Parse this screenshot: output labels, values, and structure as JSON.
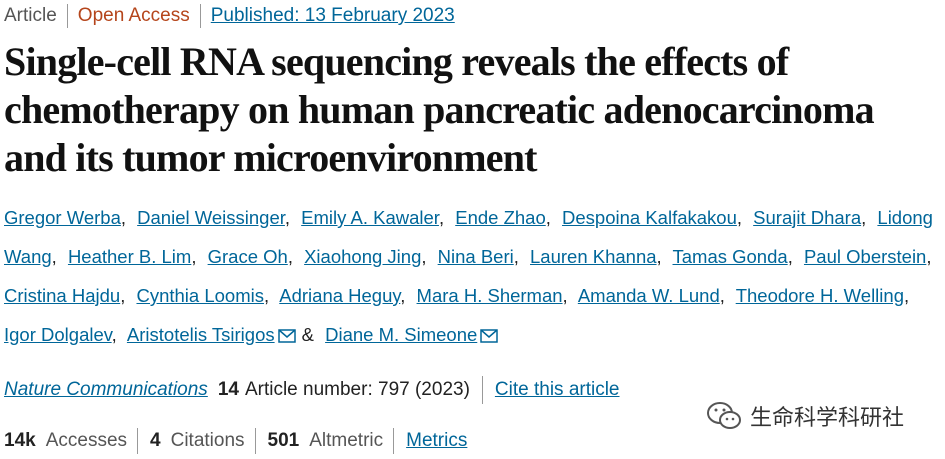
{
  "meta": {
    "type": "Article",
    "access": "Open Access",
    "published": "Published: 13 February 2023"
  },
  "title": "Single-cell RNA sequencing reveals the effects of chemotherapy on human pancreatic adenocarcinoma and its tumor microenvironment",
  "authors": {
    "separator": ",",
    "last_joiner": "&",
    "list": [
      {
        "name": "Gregor Werba",
        "email": false
      },
      {
        "name": "Daniel Weissinger",
        "email": false
      },
      {
        "name": "Emily A. Kawaler",
        "email": false
      },
      {
        "name": "Ende Zhao",
        "email": false
      },
      {
        "name": "Despoina Kalfakakou",
        "email": false
      },
      {
        "name": "Surajit Dhara",
        "email": false
      },
      {
        "name": "Lidong Wang",
        "email": false
      },
      {
        "name": "Heather B. Lim",
        "email": false
      },
      {
        "name": "Grace Oh",
        "email": false
      },
      {
        "name": "Xiaohong Jing",
        "email": false
      },
      {
        "name": "Nina Beri",
        "email": false
      },
      {
        "name": "Lauren Khanna",
        "email": false
      },
      {
        "name": "Tamas Gonda",
        "email": false
      },
      {
        "name": "Paul Oberstein",
        "email": false
      },
      {
        "name": "Cristina Hajdu",
        "email": false
      },
      {
        "name": "Cynthia Loomis",
        "email": false
      },
      {
        "name": "Adriana Heguy",
        "email": false
      },
      {
        "name": "Mara H. Sherman",
        "email": false
      },
      {
        "name": "Amanda W. Lund",
        "email": false
      },
      {
        "name": "Theodore H. Welling",
        "email": false
      },
      {
        "name": "Igor Dolgalev",
        "email": false
      },
      {
        "name": "Aristotelis Tsirigos",
        "email": true
      },
      {
        "name": "Diane M. Simeone",
        "email": true
      }
    ]
  },
  "citation": {
    "journal": "Nature Communications",
    "volume": "14",
    "article_number": "Article number: 797 (2023)",
    "cite": "Cite this article"
  },
  "metrics": {
    "accesses_count": "14k",
    "accesses_label": "Accesses",
    "citations_count": "4",
    "citations_label": "Citations",
    "altmetric_count": "501",
    "altmetric_label": "Altmetric",
    "link": "Metrics"
  },
  "watermark": "生命科学科研社"
}
